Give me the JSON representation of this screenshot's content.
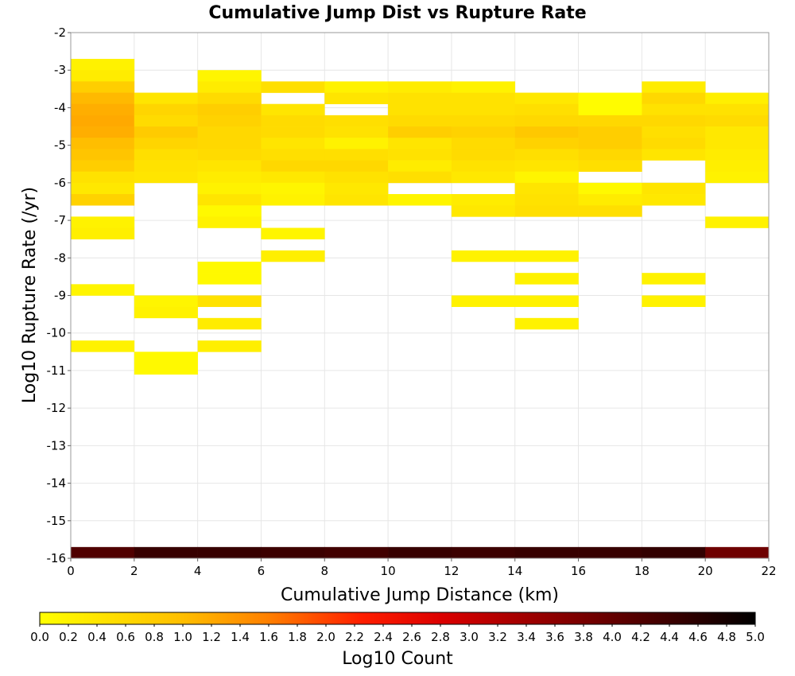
{
  "chart_data": {
    "type": "heatmap",
    "title": "Cumulative Jump Dist vs Rupture Rate",
    "xlabel": "Cumulative Jump Distance (km)",
    "ylabel": "Log10 Rupture Rate (/yr)",
    "xlim": [
      0,
      22
    ],
    "ylim": [
      -16,
      -2
    ],
    "x_ticks": [
      0,
      2,
      4,
      6,
      8,
      10,
      12,
      14,
      16,
      18,
      20,
      22
    ],
    "y_ticks": [
      -2,
      -3,
      -4,
      -5,
      -6,
      -7,
      -8,
      -9,
      -10,
      -11,
      -12,
      -13,
      -14,
      -15,
      -16
    ],
    "x_bin_width": 2,
    "y_bin_height": 0.3,
    "colorbar": {
      "label": "Log10 Count",
      "range": [
        0,
        5
      ],
      "ticks": [
        "0.0",
        "0.2",
        "0.4",
        "0.6",
        "0.8",
        "1.0",
        "1.2",
        "1.4",
        "1.6",
        "1.8",
        "2.0",
        "2.2",
        "2.4",
        "2.6",
        "2.8",
        "3.0",
        "3.2",
        "3.4",
        "3.6",
        "3.8",
        "4.0",
        "4.2",
        "4.4",
        "4.6",
        "4.8",
        "5.0"
      ]
    },
    "grid": true,
    "cells_note": "each row: x bin start (km), y bin start (log10 rate), log10 count",
    "cells": [
      [
        0,
        -3.0,
        0.2
      ],
      [
        0,
        -3.3,
        0.3
      ],
      [
        0,
        -3.6,
        0.75
      ],
      [
        0,
        -3.9,
        1.05
      ],
      [
        0,
        -4.2,
        1.15
      ],
      [
        0,
        -4.5,
        1.2
      ],
      [
        0,
        -4.8,
        1.15
      ],
      [
        0,
        -5.1,
        1.0
      ],
      [
        0,
        -5.4,
        0.9
      ],
      [
        0,
        -5.7,
        0.75
      ],
      [
        0,
        -6.0,
        0.45
      ],
      [
        0,
        -6.3,
        0.35
      ],
      [
        0,
        -6.6,
        0.7
      ],
      [
        0,
        -7.2,
        0.2
      ],
      [
        0,
        -7.5,
        0.25
      ],
      [
        0,
        -9.0,
        0.15
      ],
      [
        0,
        -10.5,
        0.2
      ],
      [
        2,
        -3.9,
        0.4
      ],
      [
        2,
        -4.2,
        0.65
      ],
      [
        2,
        -4.5,
        0.55
      ],
      [
        2,
        -4.8,
        0.8
      ],
      [
        2,
        -5.1,
        0.65
      ],
      [
        2,
        -5.4,
        0.5
      ],
      [
        2,
        -5.7,
        0.45
      ],
      [
        2,
        -6.0,
        0.4
      ],
      [
        2,
        -9.3,
        0.15
      ],
      [
        2,
        -9.6,
        0.2
      ],
      [
        2,
        -10.8,
        0.1
      ],
      [
        2,
        -11.1,
        0.1
      ],
      [
        4,
        -3.3,
        0.15
      ],
      [
        4,
        -3.6,
        0.3
      ],
      [
        4,
        -3.9,
        0.55
      ],
      [
        4,
        -4.2,
        0.75
      ],
      [
        4,
        -4.5,
        0.7
      ],
      [
        4,
        -4.8,
        0.6
      ],
      [
        4,
        -5.1,
        0.6
      ],
      [
        4,
        -5.4,
        0.55
      ],
      [
        4,
        -5.7,
        0.4
      ],
      [
        4,
        -6.0,
        0.3
      ],
      [
        4,
        -6.3,
        0.2
      ],
      [
        4,
        -6.6,
        0.4
      ],
      [
        4,
        -6.9,
        0.1
      ],
      [
        4,
        -7.2,
        0.2
      ],
      [
        4,
        -8.4,
        0.1
      ],
      [
        4,
        -8.7,
        0.1
      ],
      [
        4,
        -9.3,
        0.45
      ],
      [
        4,
        -9.9,
        0.3
      ],
      [
        4,
        -10.5,
        0.25
      ],
      [
        6,
        -3.6,
        0.5
      ],
      [
        6,
        -4.2,
        0.4
      ],
      [
        6,
        -4.5,
        0.55
      ],
      [
        6,
        -4.8,
        0.55
      ],
      [
        6,
        -5.1,
        0.4
      ],
      [
        6,
        -5.4,
        0.5
      ],
      [
        6,
        -5.7,
        0.6
      ],
      [
        6,
        -6.0,
        0.35
      ],
      [
        6,
        -6.3,
        0.15
      ],
      [
        6,
        -6.6,
        0.2
      ],
      [
        6,
        -7.5,
        0.15
      ],
      [
        6,
        -8.1,
        0.25
      ],
      [
        8,
        -3.6,
        0.2
      ],
      [
        8,
        -3.9,
        0.4
      ],
      [
        8,
        -4.5,
        0.5
      ],
      [
        8,
        -4.8,
        0.45
      ],
      [
        8,
        -5.1,
        0.2
      ],
      [
        8,
        -5.4,
        0.5
      ],
      [
        8,
        -5.7,
        0.6
      ],
      [
        8,
        -6.0,
        0.45
      ],
      [
        8,
        -6.3,
        0.35
      ],
      [
        8,
        -6.6,
        0.4
      ],
      [
        10,
        -3.6,
        0.3
      ],
      [
        10,
        -3.9,
        0.45
      ],
      [
        10,
        -4.2,
        0.45
      ],
      [
        10,
        -4.5,
        0.55
      ],
      [
        10,
        -4.8,
        0.75
      ],
      [
        10,
        -5.1,
        0.4
      ],
      [
        10,
        -5.4,
        0.45
      ],
      [
        10,
        -5.7,
        0.3
      ],
      [
        10,
        -6.0,
        0.5
      ],
      [
        10,
        -6.6,
        0.15
      ],
      [
        12,
        -3.6,
        0.2
      ],
      [
        12,
        -3.9,
        0.45
      ],
      [
        12,
        -4.2,
        0.45
      ],
      [
        12,
        -4.5,
        0.55
      ],
      [
        12,
        -4.8,
        0.7
      ],
      [
        12,
        -5.1,
        0.55
      ],
      [
        12,
        -5.4,
        0.55
      ],
      [
        12,
        -5.7,
        0.45
      ],
      [
        12,
        -6.0,
        0.35
      ],
      [
        12,
        -6.6,
        0.3
      ],
      [
        12,
        -6.9,
        0.35
      ],
      [
        12,
        -8.1,
        0.2
      ],
      [
        12,
        -9.3,
        0.2
      ],
      [
        14,
        -3.9,
        0.35
      ],
      [
        14,
        -4.2,
        0.5
      ],
      [
        14,
        -4.5,
        0.6
      ],
      [
        14,
        -4.8,
        0.85
      ],
      [
        14,
        -5.1,
        0.7
      ],
      [
        14,
        -5.4,
        0.5
      ],
      [
        14,
        -5.7,
        0.4
      ],
      [
        14,
        -6.0,
        0.15
      ],
      [
        14,
        -6.3,
        0.4
      ],
      [
        14,
        -6.6,
        0.45
      ],
      [
        14,
        -6.9,
        0.5
      ],
      [
        14,
        -8.1,
        0.2
      ],
      [
        14,
        -8.7,
        0.2
      ],
      [
        14,
        -9.3,
        0.2
      ],
      [
        14,
        -9.9,
        0.2
      ],
      [
        16,
        -3.9,
        0.05
      ],
      [
        16,
        -4.2,
        0.05
      ],
      [
        16,
        -4.5,
        0.6
      ],
      [
        16,
        -4.8,
        0.75
      ],
      [
        16,
        -5.1,
        0.75
      ],
      [
        16,
        -5.4,
        0.6
      ],
      [
        16,
        -5.7,
        0.5
      ],
      [
        16,
        -6.3,
        0.1
      ],
      [
        16,
        -6.6,
        0.3
      ],
      [
        16,
        -6.9,
        0.5
      ],
      [
        18,
        -3.6,
        0.3
      ],
      [
        18,
        -3.9,
        0.6
      ],
      [
        18,
        -4.2,
        0.45
      ],
      [
        18,
        -4.5,
        0.6
      ],
      [
        18,
        -4.8,
        0.5
      ],
      [
        18,
        -5.1,
        0.55
      ],
      [
        18,
        -5.4,
        0.4
      ],
      [
        18,
        -6.3,
        0.4
      ],
      [
        18,
        -6.6,
        0.35
      ],
      [
        18,
        -8.7,
        0.2
      ],
      [
        18,
        -9.3,
        0.2
      ],
      [
        20,
        -3.9,
        0.25
      ],
      [
        20,
        -4.2,
        0.45
      ],
      [
        20,
        -4.5,
        0.55
      ],
      [
        20,
        -4.8,
        0.35
      ],
      [
        20,
        -5.1,
        0.35
      ],
      [
        20,
        -5.4,
        0.3
      ],
      [
        20,
        -5.7,
        0.25
      ],
      [
        20,
        -6.0,
        0.2
      ],
      [
        20,
        -7.2,
        0.2
      ],
      [
        0,
        -16.0,
        4.2
      ],
      [
        2,
        -16.0,
        4.45
      ],
      [
        4,
        -16.0,
        4.45
      ],
      [
        6,
        -16.0,
        4.4
      ],
      [
        8,
        -16.0,
        4.35
      ],
      [
        10,
        -16.0,
        4.45
      ],
      [
        12,
        -16.0,
        4.4
      ],
      [
        14,
        -16.0,
        4.45
      ],
      [
        16,
        -16.0,
        4.45
      ],
      [
        18,
        -16.0,
        4.5
      ],
      [
        20,
        -16.0,
        3.9
      ]
    ]
  }
}
